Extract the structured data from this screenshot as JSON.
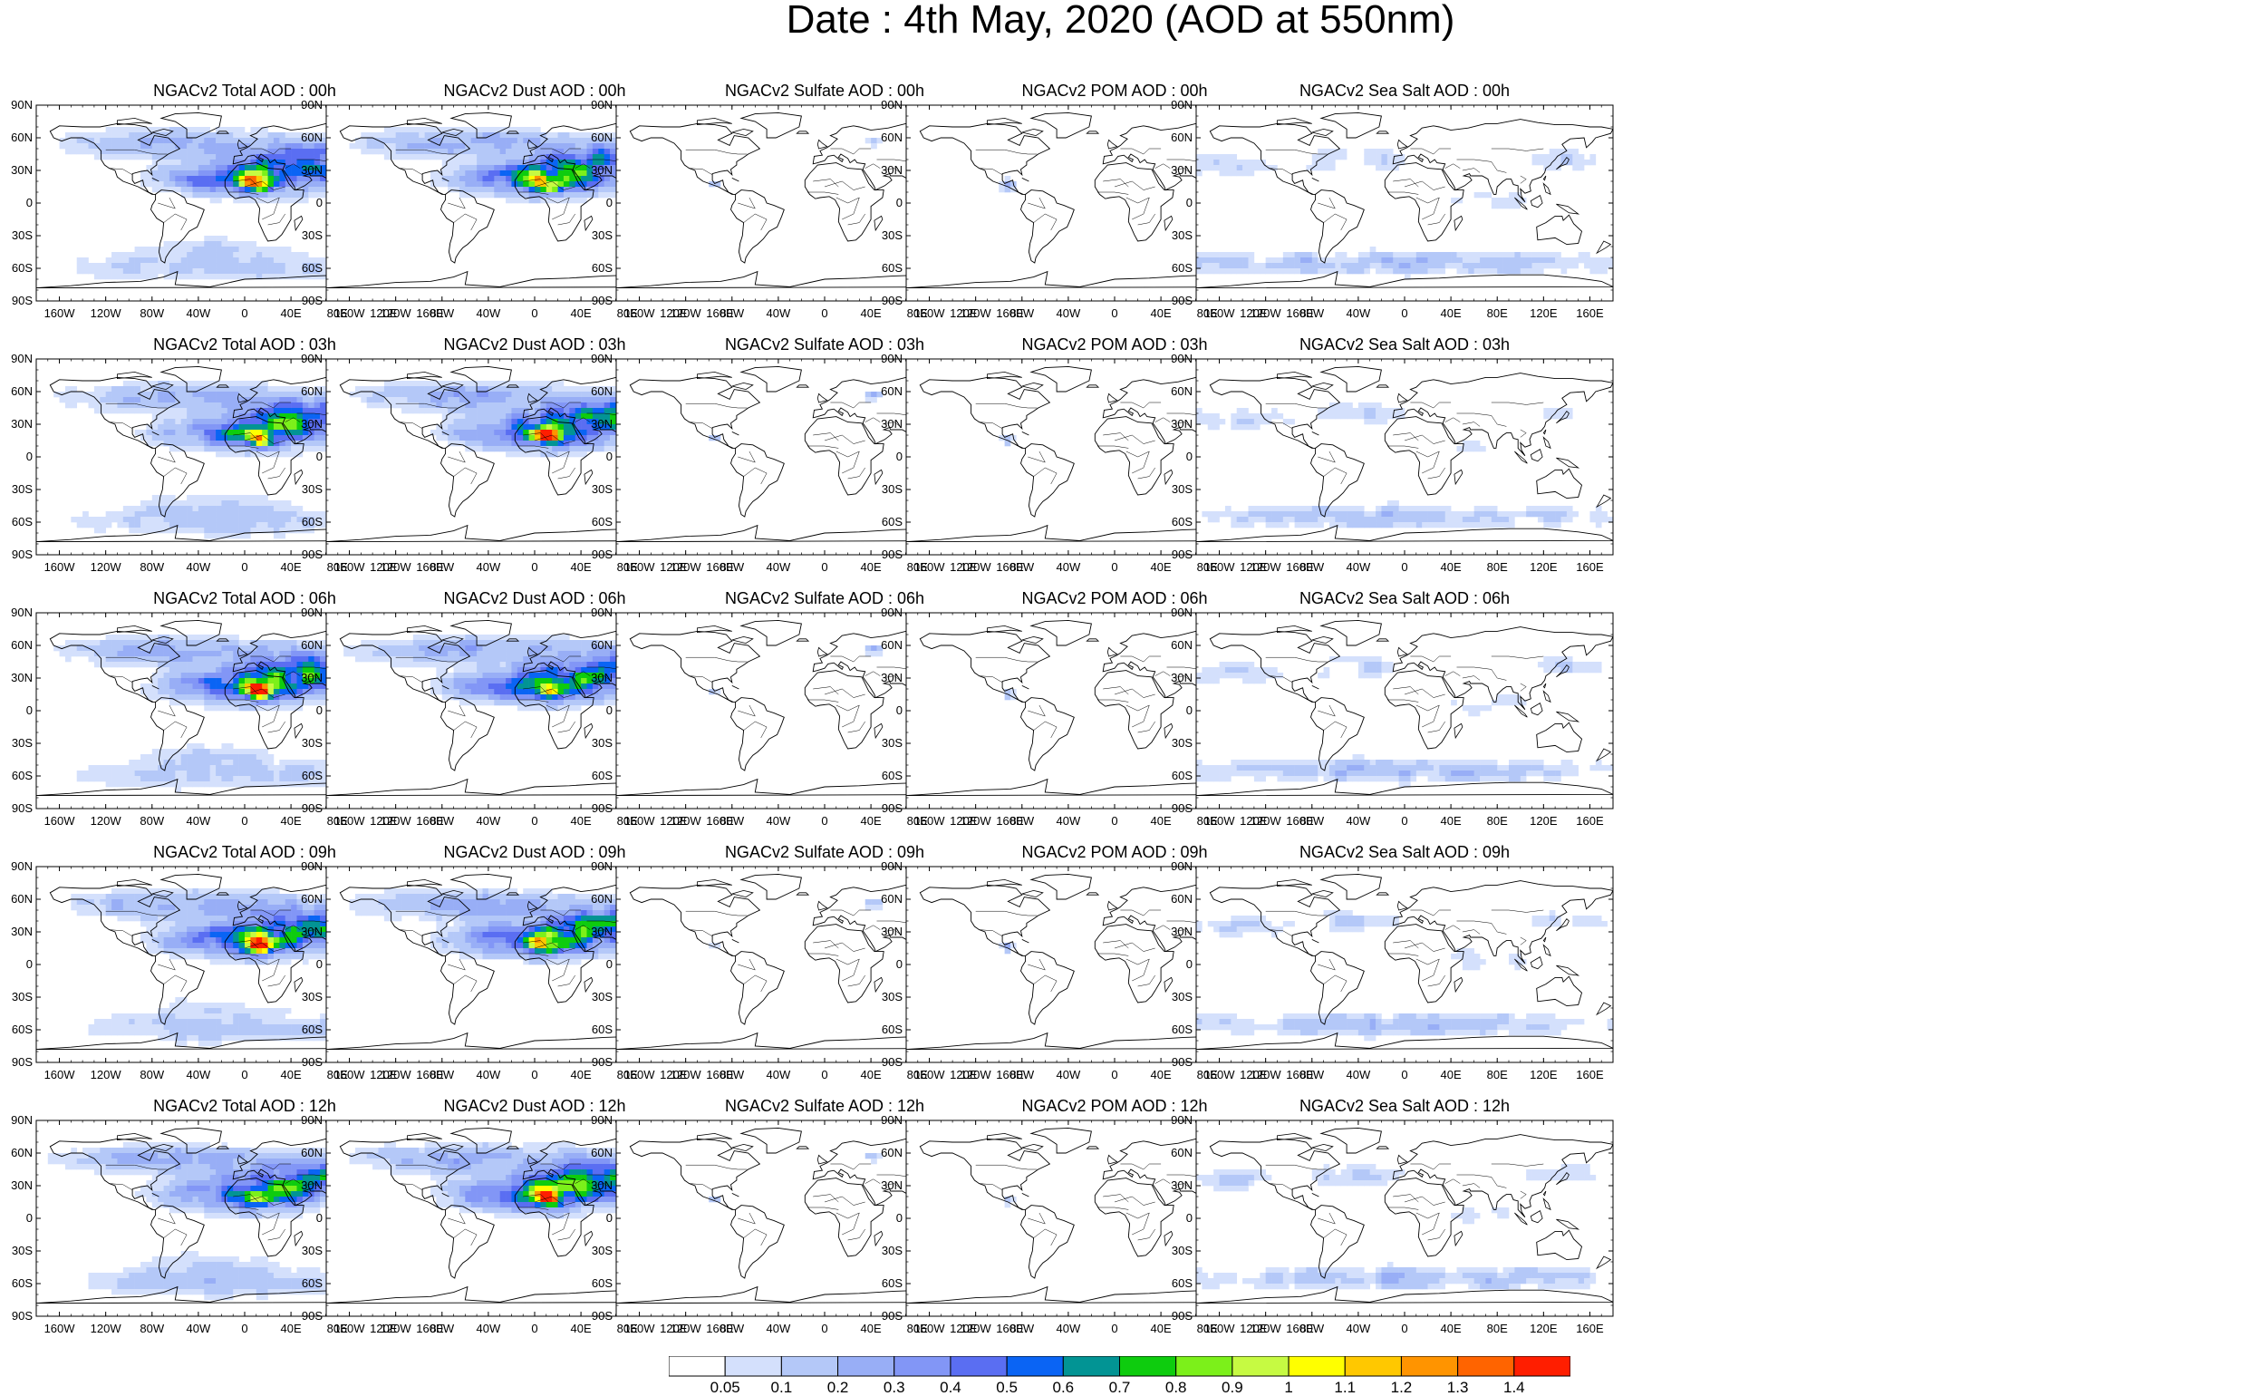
{
  "title": "Date : 4th May, 2020 (AOD at 550nm)",
  "columns": [
    "total",
    "dust",
    "sulfate",
    "pom",
    "seasalt"
  ],
  "panels": [
    [
      {
        "label": "NGACv2 Total AOD : 00h",
        "field": "total"
      },
      {
        "label": "NGACv2 Dust AOD : 00h",
        "field": "dust"
      },
      {
        "label": "NGACv2 Sulfate AOD : 00h",
        "field": "sulfate"
      },
      {
        "label": "NGACv2 POM AOD : 00h",
        "field": "pom"
      },
      {
        "label": "NGACv2 Sea Salt AOD : 00h",
        "field": "seasalt"
      }
    ],
    [
      {
        "label": "NGACv2 Total AOD : 03h",
        "field": "total"
      },
      {
        "label": "NGACv2 Dust AOD : 03h",
        "field": "dust"
      },
      {
        "label": "NGACv2 Sulfate AOD : 03h",
        "field": "sulfate"
      },
      {
        "label": "NGACv2 POM AOD : 03h",
        "field": "pom"
      },
      {
        "label": "NGACv2 Sea Salt AOD : 03h",
        "field": "seasalt"
      }
    ],
    [
      {
        "label": "NGACv2 Total AOD : 06h",
        "field": "total"
      },
      {
        "label": "NGACv2 Dust AOD : 06h",
        "field": "dust"
      },
      {
        "label": "NGACv2 Sulfate AOD : 06h",
        "field": "sulfate"
      },
      {
        "label": "NGACv2 POM AOD : 06h",
        "field": "pom"
      },
      {
        "label": "NGACv2 Sea Salt AOD : 06h",
        "field": "seasalt"
      }
    ],
    [
      {
        "label": "NGACv2 Total AOD : 09h",
        "field": "total"
      },
      {
        "label": "NGACv2 Dust AOD : 09h",
        "field": "dust"
      },
      {
        "label": "NGACv2 Sulfate AOD : 09h",
        "field": "sulfate"
      },
      {
        "label": "NGACv2 POM AOD : 09h",
        "field": "pom"
      },
      {
        "label": "NGACv2 Sea Salt  AOD : 09h",
        "field": "seasalt"
      }
    ],
    [
      {
        "label": "NGACv2 Total AOD  : 12h",
        "field": "total"
      },
      {
        "label": "NGACv2 Dust AOD : 12h",
        "field": "dust"
      },
      {
        "label": "NGACv2 Sulfate AOD : 12h",
        "field": "sulfate"
      },
      {
        "label": "NGACv2 POM  AOD : 12h",
        "field": "pom"
      },
      {
        "label": "NGACv2 Sea Salt AOD : 12h",
        "field": "seasalt"
      }
    ]
  ],
  "axes": {
    "lat_labels": [
      "90N",
      "60N",
      "30N",
      "0",
      "30S",
      "60S",
      "90S"
    ],
    "lat_values": [
      90,
      60,
      30,
      0,
      -30,
      -60,
      -90
    ],
    "lon_labels": [
      "160W",
      "120W",
      "80W",
      "40W",
      "0",
      "40E",
      "80E",
      "120E",
      "160E"
    ],
    "lon_values": [
      -160,
      -120,
      -80,
      -40,
      0,
      40,
      80,
      120,
      160
    ]
  },
  "colorbar": {
    "labels": [
      "0.05",
      "0.1",
      "0.2",
      "0.3",
      "0.4",
      "0.5",
      "0.6",
      "0.7",
      "0.8",
      "0.9",
      "1",
      "1.1",
      "1.2",
      "1.3",
      "1.4"
    ],
    "colors": [
      "#ffffff",
      "#d4e0fc",
      "#b4c8f8",
      "#98aef6",
      "#8296f6",
      "#5a6ef2",
      "#0a64f4",
      "#029494",
      "#0ecc0e",
      "#7cf01a",
      "#c6fa42",
      "#ffff00",
      "#ffc800",
      "#ff9400",
      "#ff6400",
      "#ff1e00"
    ]
  },
  "legend_colors": {
    "coast": "#000000",
    "low_aod": "#d4e0fc",
    "mid_aod": "#98aef6",
    "high_aod": "#5a6ef2",
    "dust_core": "#7cf01a",
    "dust_peak": "#ffc800",
    "hotspot": "#ff6400"
  }
}
